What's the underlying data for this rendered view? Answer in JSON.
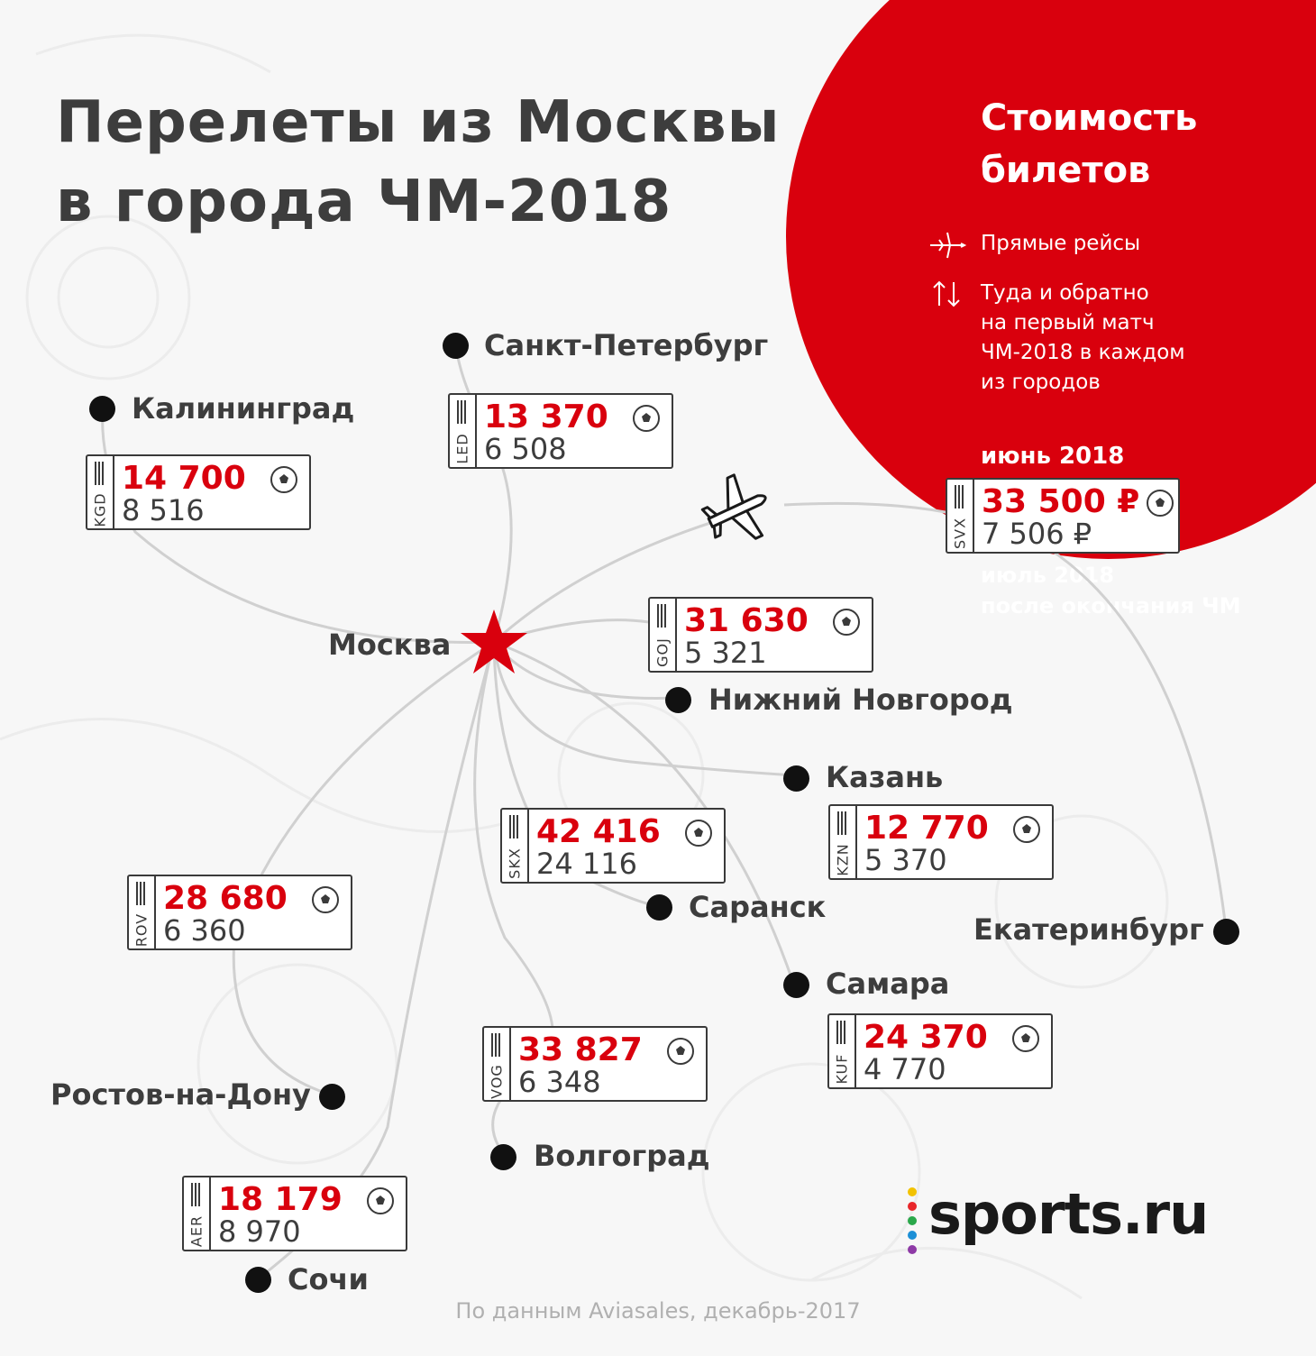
{
  "title": "Перелеты из Москвы\nв города ЧМ-2018",
  "legend": {
    "title": "Стоимость\nбилетов",
    "direct": "Прямые рейсы",
    "roundtrip": "Туда и обратно\nна первый матч\nЧМ-2018 в каждом\nиз городов",
    "month_top": "июнь 2018",
    "month_bottom": "июль 2018\nпосле окончания ЧМ",
    "example": {
      "code": "SVX",
      "price": "33 500 ₽",
      "sub": "7 506 ₽"
    }
  },
  "hub": "Москва",
  "cities": {
    "spb": "Санкт-Петербург",
    "kgd": "Калининград",
    "nn": "Нижний Новгород",
    "kzn": "Казань",
    "saransk": "Саранск",
    "ekb": "Екатеринбург",
    "samara": "Самара",
    "rostov": "Ростов-на-Дону",
    "volgograd": "Волгоград",
    "sochi": "Сочи"
  },
  "tickets": {
    "led": {
      "code": "LED",
      "price": "13 370",
      "sub": "6 508"
    },
    "kgd": {
      "code": "KGD",
      "price": "14 700",
      "sub": "8 516"
    },
    "goj": {
      "code": "GOJ",
      "price": "31 630",
      "sub": "5 321"
    },
    "skx": {
      "code": "SKX",
      "price": "42 416",
      "sub": "24 116"
    },
    "kzn": {
      "code": "KZN",
      "price": "12 770",
      "sub": "5 370"
    },
    "rov": {
      "code": "ROV",
      "price": "28 680",
      "sub": "6 360"
    },
    "vog": {
      "code": "VOG",
      "price": "33 827",
      "sub": "6 348"
    },
    "kuf": {
      "code": "KUF",
      "price": "24 370",
      "sub": "4 770"
    },
    "aer": {
      "code": "AER",
      "price": "18 179",
      "sub": "8 970"
    }
  },
  "logo": "sports.ru",
  "footer": "По данным Aviasales, декабрь-2017",
  "colors": {
    "accent": "#d9000d",
    "text": "#3d3d3d",
    "route": "#cfcfcf"
  },
  "icons": [
    "plane-icon",
    "round-trip-icon",
    "star-icon",
    "ball-icon",
    "barcode-icon"
  ]
}
